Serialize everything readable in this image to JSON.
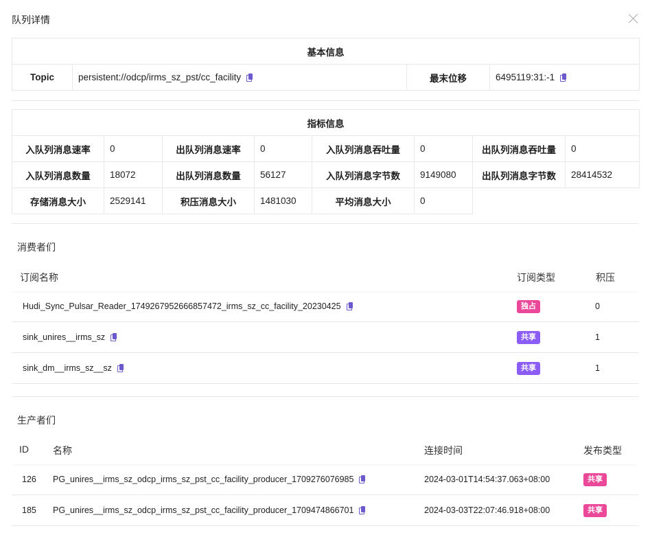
{
  "dialog": {
    "title": "队列详情"
  },
  "basic": {
    "header": "基本信息",
    "topic_label": "Topic",
    "topic_value": "persistent://odcp/irms_sz_pst/cc_facility",
    "offset_label": "最末位移",
    "offset_value": "6495119:31:-1"
  },
  "metrics": {
    "header": "指标信息",
    "rows": [
      [
        {
          "label": "入队列消息速率",
          "value": "0"
        },
        {
          "label": "出队列消息速率",
          "value": "0"
        },
        {
          "label": "入队列消息吞吐量",
          "value": "0"
        },
        {
          "label": "出队列消息吞吐量",
          "value": "0"
        }
      ],
      [
        {
          "label": "入队列消息数量",
          "value": "18072"
        },
        {
          "label": "出队列消息数量",
          "value": "56127"
        },
        {
          "label": "入队列消息字节数",
          "value": "9149080"
        },
        {
          "label": "出队列消息字节数",
          "value": "28414532"
        }
      ],
      [
        {
          "label": "存储消息大小",
          "value": "2529141"
        },
        {
          "label": "积压消息大小",
          "value": "1481030"
        },
        {
          "label": "平均消息大小",
          "value": "0"
        }
      ]
    ]
  },
  "consumers": {
    "title": "消费者们",
    "columns": [
      "订阅名称",
      "订阅类型",
      "积压"
    ],
    "rows": [
      {
        "name": "Hudi_Sync_Pulsar_Reader_1749267952666857472_irms_sz_cc_facility_20230425",
        "type": "独占",
        "type_color": "#ec4899",
        "backlog": "0"
      },
      {
        "name": "sink_unires__irms_sz",
        "type": "共享",
        "type_color": "#8b5cf6",
        "backlog": "1"
      },
      {
        "name": "sink_dm__irms_sz__sz",
        "type": "共享",
        "type_color": "#8b5cf6",
        "backlog": "1"
      }
    ]
  },
  "producers": {
    "title": "生产者们",
    "columns": [
      "ID",
      "名称",
      "连接时间",
      "发布类型"
    ],
    "rows": [
      {
        "id": "126",
        "name": "PG_unires__irms_sz_odcp_irms_sz_pst_cc_facility_producer_1709276076985",
        "time": "2024-03-01T14:54:37.063+08:00",
        "type": "共享",
        "type_color": "#ec4899"
      },
      {
        "id": "185",
        "name": "PG_unires__irms_sz_odcp_irms_sz_pst_cc_facility_producer_1709474866701",
        "time": "2024-03-03T22:07:46.918+08:00",
        "type": "共享",
        "type_color": "#ec4899"
      }
    ]
  }
}
